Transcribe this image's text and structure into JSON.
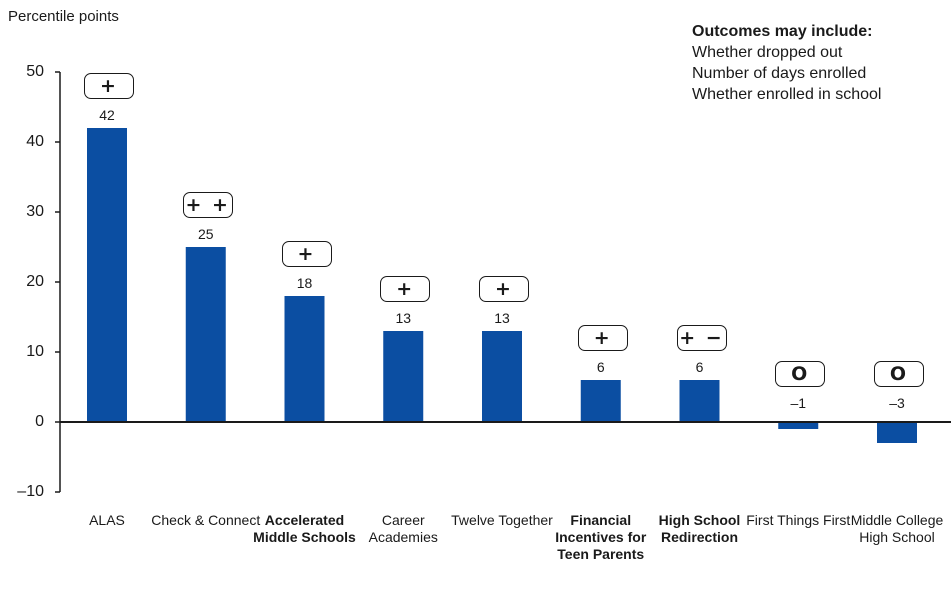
{
  "chart_data": {
    "type": "bar",
    "ylabel": "Percentile points",
    "ylim": [
      -10,
      50
    ],
    "yticks": [
      50,
      40,
      30,
      20,
      10,
      0,
      -10
    ],
    "ytick_labels": [
      "50",
      "40",
      "30",
      "20",
      "10",
      "0",
      "–10"
    ],
    "bar_color": "#0b4ea2",
    "categories": [
      {
        "label": "ALAS",
        "bold": false,
        "value": 42,
        "value_label": "42",
        "rating": "+"
      },
      {
        "label": "Check & Connect",
        "bold": false,
        "value": 25,
        "value_label": "25",
        "rating": "+ +"
      },
      {
        "label": "Accelerated Middle Schools",
        "bold": true,
        "value": 18,
        "value_label": "18",
        "rating": "+"
      },
      {
        "label": "Career Academies",
        "bold": false,
        "value": 13,
        "value_label": "13",
        "rating": "+"
      },
      {
        "label": "Twelve Together",
        "bold": false,
        "value": 13,
        "value_label": "13",
        "rating": "+"
      },
      {
        "label": "Financial Incentives for Teen Parents",
        "bold": true,
        "value": 6,
        "value_label": "6",
        "rating": "+"
      },
      {
        "label": "High School Redirection",
        "bold": true,
        "value": 6,
        "value_label": "6",
        "rating": "+ −"
      },
      {
        "label": "First Things First",
        "bold": false,
        "value": -1,
        "value_label": "–1",
        "rating": "O"
      },
      {
        "label": "Middle College High School",
        "bold": false,
        "value": -3,
        "value_label": "–3",
        "rating": "O"
      }
    ]
  },
  "legend": {
    "title": "Outcomes may include:",
    "items": [
      "Whether dropped out",
      "Number of days enrolled",
      "Whether enrolled in school"
    ]
  }
}
